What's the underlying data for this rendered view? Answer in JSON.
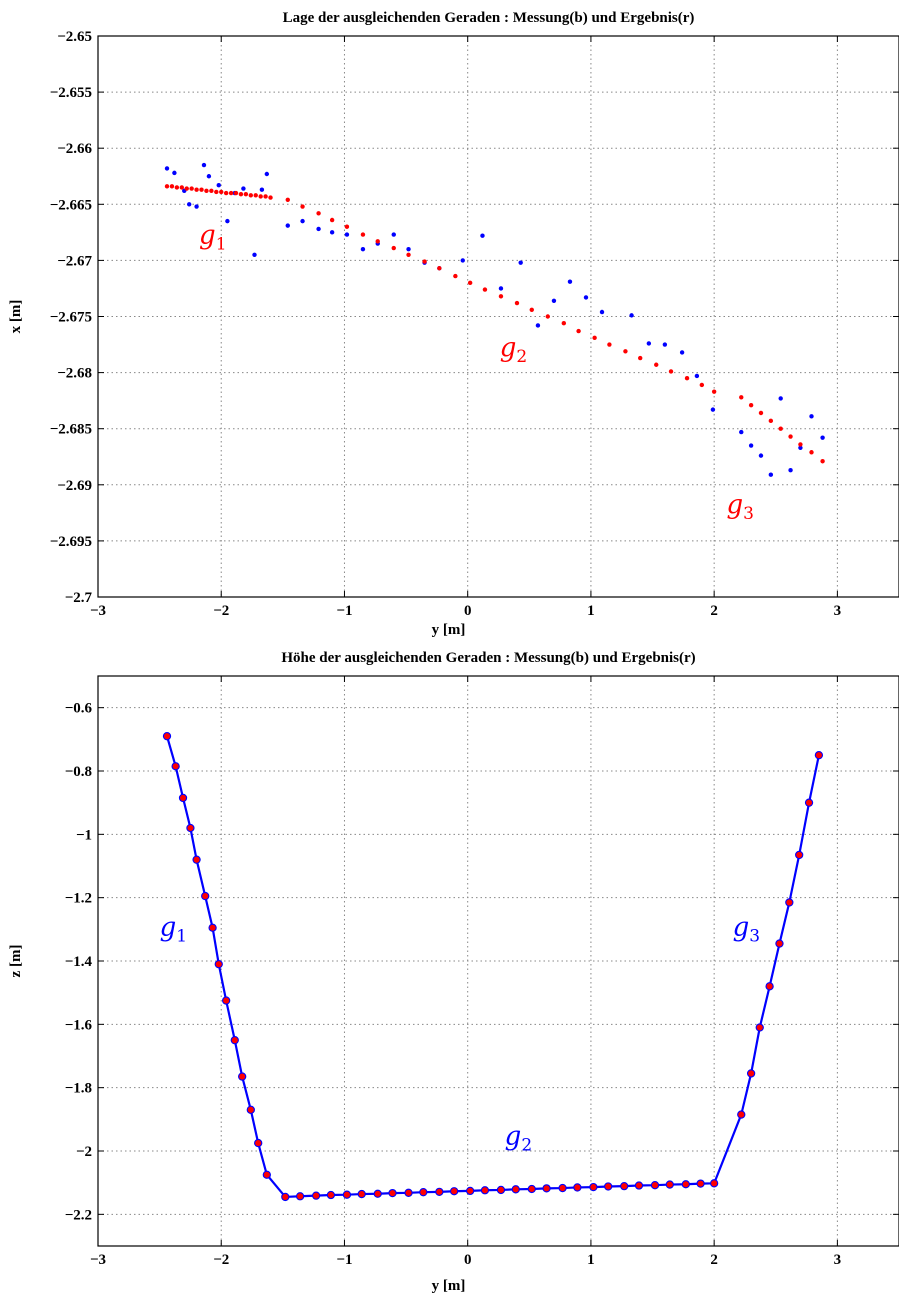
{
  "chart_data": [
    {
      "type": "scatter",
      "title": "Lage der ausgleichenden Geraden : Messung(b) und Ergebnis(r)",
      "xlabel": "y [m]",
      "ylabel": "x [m]",
      "xlim": [
        -3,
        3.5
      ],
      "ylim": [
        -2.7,
        -2.65
      ],
      "xticks": [
        -3,
        -2,
        -1,
        0,
        1,
        2,
        3
      ],
      "xtick_labels": [
        "−3",
        "−2",
        "−1",
        "0",
        "1",
        "2",
        "3"
      ],
      "yticks": [
        -2.65,
        -2.655,
        -2.66,
        -2.665,
        -2.67,
        -2.675,
        -2.68,
        -2.685,
        -2.69,
        -2.695,
        -2.7
      ],
      "ytick_labels": [
        "−2.65",
        "−2.655",
        "−2.66",
        "−2.665",
        "−2.67",
        "−2.675",
        "−2.68",
        "−2.685",
        "−2.69",
        "−2.695",
        "−2.7"
      ],
      "grid": true,
      "annotations": [
        {
          "text": "g",
          "sub": "1",
          "x": -2.18,
          "y": -2.6685,
          "color": "#ff0000"
        },
        {
          "text": "g",
          "sub": "2",
          "x": 0.26,
          "y": -2.6785,
          "color": "#ff0000"
        },
        {
          "text": "g",
          "sub": "3",
          "x": 2.1,
          "y": -2.6925,
          "color": "#ff0000"
        }
      ],
      "series": [
        {
          "color": "#0000ff",
          "marker": "dot",
          "x": [
            -2.44,
            -2.38,
            -2.3,
            -2.26,
            -2.2,
            -2.14,
            -2.1,
            -2.02,
            -1.95,
            -1.89,
            -1.82,
            -1.73,
            -1.67,
            -1.63,
            -1.46,
            -1.34,
            -1.21,
            -1.1,
            -0.98,
            -0.85,
            -0.73,
            -0.6,
            -0.48,
            -0.35,
            -0.23,
            -0.04,
            0.12,
            0.27,
            0.43,
            0.57,
            0.7,
            0.83,
            0.96,
            1.09,
            1.33,
            1.47,
            1.6,
            1.74,
            1.86,
            1.99,
            2.22,
            2.3,
            2.38,
            2.46,
            2.54,
            2.62,
            2.7,
            2.79,
            2.88
          ],
          "y": [
            -2.6618,
            -2.6622,
            -2.6638,
            -2.665,
            -2.6652,
            -2.6615,
            -2.6625,
            -2.6633,
            -2.6665,
            -2.664,
            -2.6636,
            -2.6695,
            -2.6637,
            -2.6623,
            -2.6669,
            -2.6665,
            -2.6672,
            -2.6675,
            -2.6677,
            -2.669,
            -2.6685,
            -2.6677,
            -2.669,
            -2.6702,
            -2.6707,
            -2.67,
            -2.6678,
            -2.6725,
            -2.6702,
            -2.6758,
            -2.6736,
            -2.6719,
            -2.6733,
            -2.6746,
            -2.6749,
            -2.6774,
            -2.6775,
            -2.6782,
            -2.6803,
            -2.6833,
            -2.6853,
            -2.6865,
            -2.6874,
            -2.6891,
            -2.6823,
            -2.6887,
            -2.6867,
            -2.6839,
            -2.6858
          ]
        },
        {
          "color": "#ff0000",
          "marker": "dot",
          "x": [
            -2.44,
            -2.4,
            -2.36,
            -2.32,
            -2.28,
            -2.24,
            -2.2,
            -2.16,
            -2.12,
            -2.08,
            -2.04,
            -2.0,
            -1.96,
            -1.92,
            -1.88,
            -1.84,
            -1.8,
            -1.76,
            -1.72,
            -1.68,
            -1.64,
            -1.6,
            -1.46,
            -1.34,
            -1.21,
            -1.1,
            -0.98,
            -0.85,
            -0.73,
            -0.6,
            -0.48,
            -0.35,
            -0.23,
            -0.1,
            0.02,
            0.14,
            0.27,
            0.4,
            0.52,
            0.65,
            0.78,
            0.9,
            1.03,
            1.15,
            1.28,
            1.4,
            1.53,
            1.65,
            1.78,
            1.9,
            2.0,
            2.22,
            2.3,
            2.38,
            2.46,
            2.54,
            2.62,
            2.7,
            2.79,
            2.88
          ],
          "y": [
            -2.6634,
            -2.6634,
            -2.6635,
            -2.6635,
            -2.6636,
            -2.6636,
            -2.6637,
            -2.6637,
            -2.6638,
            -2.6638,
            -2.6639,
            -2.6639,
            -2.664,
            -2.664,
            -2.664,
            -2.6641,
            -2.6641,
            -2.6642,
            -2.6642,
            -2.6643,
            -2.6643,
            -2.6644,
            -2.6646,
            -2.6652,
            -2.6658,
            -2.6664,
            -2.667,
            -2.6677,
            -2.6683,
            -2.6689,
            -2.6695,
            -2.6701,
            -2.6707,
            -2.6714,
            -2.672,
            -2.6726,
            -2.6732,
            -2.6738,
            -2.6744,
            -2.675,
            -2.6756,
            -2.6763,
            -2.6769,
            -2.6775,
            -2.6781,
            -2.6787,
            -2.6793,
            -2.6799,
            -2.6805,
            -2.6811,
            -2.6817,
            -2.6822,
            -2.6829,
            -2.6836,
            -2.6843,
            -2.685,
            -2.6857,
            -2.6864,
            -2.6871,
            -2.6879
          ]
        }
      ]
    },
    {
      "type": "line",
      "title": "Höhe der ausgleichenden Geraden : Messung(b) und Ergebnis(r)",
      "xlabel": "y [m]",
      "ylabel": "z [m]",
      "xlim": [
        -3,
        3.5
      ],
      "ylim": [
        -2.3,
        -0.5
      ],
      "xticks": [
        -3,
        -2,
        -1,
        0,
        1,
        2,
        3
      ],
      "xtick_labels": [
        "−3",
        "−2",
        "−1",
        "0",
        "1",
        "2",
        "3"
      ],
      "yticks": [
        -0.6,
        -0.8,
        -1,
        -1.2,
        -1.4,
        -1.6,
        -1.8,
        -2,
        -2.2
      ],
      "ytick_labels": [
        "−0.6",
        "−0.8",
        "−1",
        "−1.2",
        "−1.4",
        "−1.6",
        "−1.8",
        "−2",
        "−2.2"
      ],
      "grid": true,
      "annotations": [
        {
          "text": "g",
          "sub": "1",
          "x": -2.5,
          "y": -1.32,
          "color": "#0000ff"
        },
        {
          "text": "g",
          "sub": "2",
          "x": 0.3,
          "y": -1.98,
          "color": "#0000ff"
        },
        {
          "text": "g",
          "sub": "3",
          "x": 2.15,
          "y": -1.32,
          "color": "#0000ff"
        }
      ],
      "series": [
        {
          "color": "#0000ff",
          "marker_fill": "#ff0000",
          "x": [
            -2.44,
            -2.37,
            -2.31,
            -2.25,
            -2.2,
            -2.13,
            -2.07,
            -2.02,
            -1.96,
            -1.89,
            -1.83,
            -1.76,
            -1.7,
            -1.63,
            -1.48,
            -1.36,
            -1.23,
            -1.11,
            -0.98,
            -0.86,
            -0.73,
            -0.61,
            -0.48,
            -0.36,
            -0.23,
            -0.11,
            0.02,
            0.14,
            0.27,
            0.39,
            0.52,
            0.64,
            0.77,
            0.89,
            1.02,
            1.14,
            1.27,
            1.39,
            1.52,
            1.64,
            1.77,
            1.89,
            2.0,
            2.22,
            2.3,
            2.37,
            2.45,
            2.53,
            2.61,
            2.69,
            2.77,
            2.85
          ],
          "y": [
            -0.69,
            -0.785,
            -0.885,
            -0.98,
            -1.08,
            -1.195,
            -1.295,
            -1.41,
            -1.525,
            -1.65,
            -1.765,
            -1.87,
            -1.975,
            -2.075,
            -2.145,
            -2.143,
            -2.141,
            -2.139,
            -2.138,
            -2.136,
            -2.135,
            -2.133,
            -2.132,
            -2.13,
            -2.129,
            -2.127,
            -2.126,
            -2.124,
            -2.123,
            -2.121,
            -2.12,
            -2.118,
            -2.117,
            -2.115,
            -2.114,
            -2.112,
            -2.111,
            -2.109,
            -2.108,
            -2.106,
            -2.105,
            -2.103,
            -2.102,
            -1.885,
            -1.755,
            -1.61,
            -1.48,
            -1.345,
            -1.215,
            -1.065,
            -0.9,
            -0.75
          ]
        }
      ]
    }
  ]
}
